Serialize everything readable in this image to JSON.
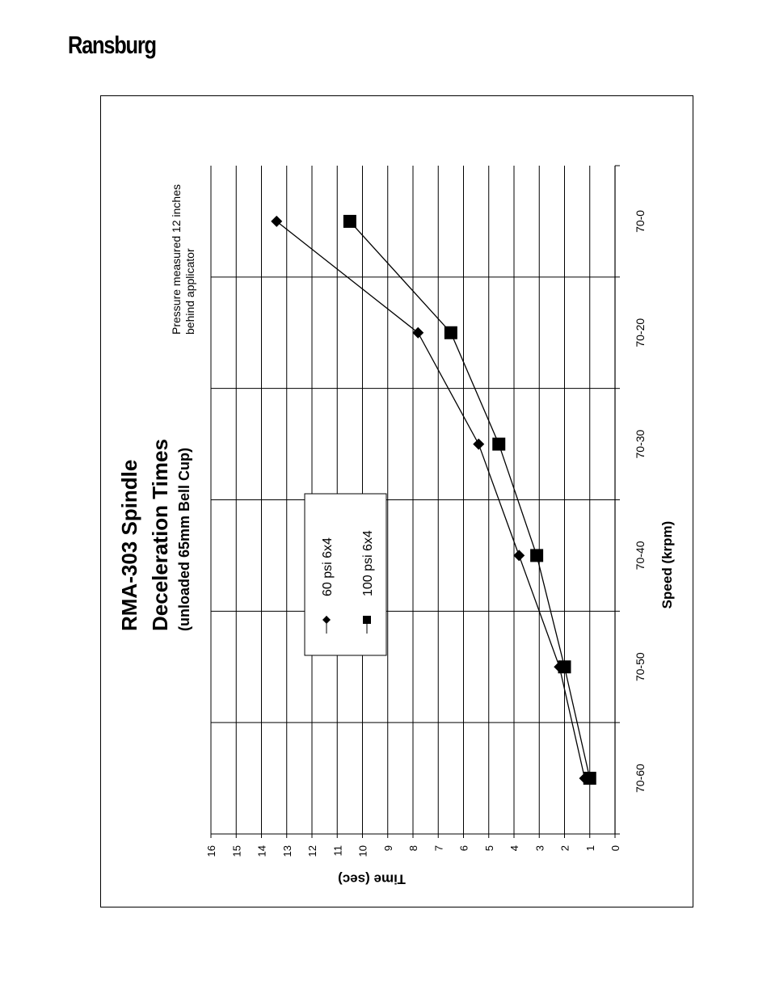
{
  "header": {
    "brand": "Ransburg"
  },
  "chart_data": {
    "type": "line",
    "title_line1": "RMA-303 Spindle",
    "title_line2": "Deceleration Times",
    "subtitle": "(unloaded 65mm Bell Cup)",
    "xlabel": "Speed (krpm)",
    "ylabel": "Time (sec)",
    "annotation_line1": "Pressure measured 12 inches",
    "annotation_line2": "behind applicator",
    "categories": [
      "70-0",
      "70-20",
      "70-30",
      "70-40",
      "70-50",
      "70-60"
    ],
    "ylim": [
      0,
      16
    ],
    "yticks": [
      "0",
      "1",
      "2",
      "3",
      "4",
      "5",
      "6",
      "7",
      "8",
      "9",
      "10",
      "11",
      "12",
      "13",
      "14",
      "15",
      "16"
    ],
    "grid": true,
    "legend_position": "center-left",
    "series": [
      {
        "name": "60 psi 6x4",
        "marker": "diamond",
        "values": [
          13.4,
          7.8,
          5.4,
          3.8,
          2.2,
          1.2
        ]
      },
      {
        "name": "100 psi 6x4",
        "marker": "square",
        "values": [
          10.5,
          6.5,
          4.6,
          3.1,
          2.0,
          1.0
        ]
      }
    ]
  }
}
